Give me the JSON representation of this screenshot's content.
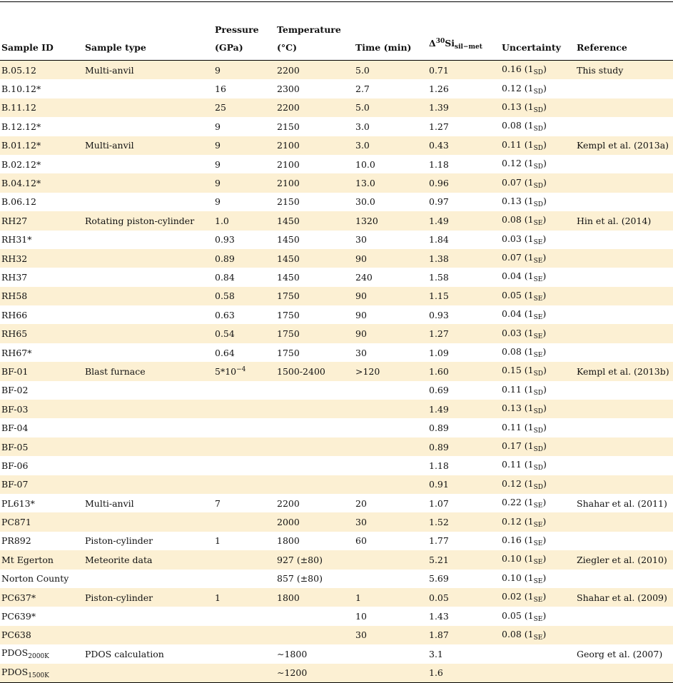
{
  "table": {
    "header": [
      [
        "Sample ID"
      ],
      [
        "Sample type"
      ],
      [
        "Pressure",
        "(GPa)"
      ],
      [
        "Temperature",
        "(°C)"
      ],
      [
        "Time (min)"
      ],
      [
        [
          "Δ",
          {
            "sup": "30"
          },
          "Si",
          {
            "sub": "sil−met"
          }
        ]
      ],
      [
        "Uncertainty"
      ],
      [
        "Reference"
      ]
    ],
    "rows": [
      [
        "B.05.12",
        "Multi-anvil",
        "9",
        "2200",
        "5.0",
        "0.71",
        [
          "0.16 (1",
          {
            "sub": "SD"
          },
          ")"
        ],
        "This study"
      ],
      [
        "B.10.12*",
        null,
        "16",
        "2300",
        "2.7",
        "1.26",
        [
          "0.12 (1",
          {
            "sub": "SD"
          },
          ")"
        ],
        null
      ],
      [
        "B.11.12",
        null,
        "25",
        "2200",
        "5.0",
        "1.39",
        [
          "0.13 (1",
          {
            "sub": "SD"
          },
          ")"
        ],
        null
      ],
      [
        "B.12.12*",
        null,
        "9",
        "2150",
        "3.0",
        "1.27",
        [
          "0.08 (1",
          {
            "sub": "SD"
          },
          ")"
        ],
        null
      ],
      [
        "B.01.12*",
        "Multi-anvil",
        "9",
        "2100",
        "3.0",
        "0.43",
        [
          "0.11 (1",
          {
            "sub": "SD"
          },
          ")"
        ],
        "Kempl et al. (2013a)"
      ],
      [
        "B.02.12*",
        null,
        "9",
        "2100",
        "10.0",
        "1.18",
        [
          "0.12 (1",
          {
            "sub": "SD"
          },
          ")"
        ],
        null
      ],
      [
        "B.04.12*",
        null,
        "9",
        "2100",
        "13.0",
        "0.96",
        [
          "0.07 (1",
          {
            "sub": "SD"
          },
          ")"
        ],
        null
      ],
      [
        "B.06.12",
        null,
        "9",
        "2150",
        "30.0",
        "0.97",
        [
          "0.13 (1",
          {
            "sub": "SD"
          },
          ")"
        ],
        null
      ],
      [
        "RH27",
        "Rotating piston-cylinder",
        "1.0",
        "1450",
        "1320",
        "1.49",
        [
          "0.08 (1",
          {
            "sub": "SE"
          },
          ")"
        ],
        "Hin et al. (2014)"
      ],
      [
        "RH31*",
        null,
        "0.93",
        "1450",
        "30",
        "1.84",
        [
          "0.03 (1",
          {
            "sub": "SE"
          },
          ")"
        ],
        null
      ],
      [
        "RH32",
        null,
        "0.89",
        "1450",
        "90",
        "1.38",
        [
          "0.07 (1",
          {
            "sub": "SE"
          },
          ")"
        ],
        null
      ],
      [
        "RH37",
        null,
        "0.84",
        "1450",
        "240",
        "1.58",
        [
          "0.04 (1",
          {
            "sub": "SE"
          },
          ")"
        ],
        null
      ],
      [
        "RH58",
        null,
        "0.58",
        "1750",
        "90",
        "1.15",
        [
          "0.05 (1",
          {
            "sub": "SE"
          },
          ")"
        ],
        null
      ],
      [
        "RH66",
        null,
        "0.63",
        "1750",
        "90",
        "0.93",
        [
          "0.04 (1",
          {
            "sub": "SE"
          },
          ")"
        ],
        null
      ],
      [
        "RH65",
        null,
        "0.54",
        "1750",
        "90",
        "1.27",
        [
          "0.03 (1",
          {
            "sub": "SE"
          },
          ")"
        ],
        null
      ],
      [
        "RH67*",
        null,
        "0.64",
        "1750",
        "30",
        "1.09",
        [
          "0.08 (1",
          {
            "sub": "SE"
          },
          ")"
        ],
        null
      ],
      [
        "BF-01",
        "Blast furnace",
        [
          "5*10",
          {
            "sup": "−4"
          }
        ],
        "1500-2400",
        ">120",
        "1.60",
        [
          "0.15 (1",
          {
            "sub": "SD"
          },
          ")"
        ],
        "Kempl et al. (2013b)"
      ],
      [
        "BF-02",
        null,
        null,
        null,
        null,
        "0.69",
        [
          "0.11 (1",
          {
            "sub": "SD"
          },
          ")"
        ],
        null
      ],
      [
        "BF-03",
        null,
        null,
        null,
        null,
        "1.49",
        [
          "0.13 (1",
          {
            "sub": "SD"
          },
          ")"
        ],
        null
      ],
      [
        "BF-04",
        null,
        null,
        null,
        null,
        "0.89",
        [
          "0.11 (1",
          {
            "sub": "SD"
          },
          ")"
        ],
        null
      ],
      [
        "BF-05",
        null,
        null,
        null,
        null,
        "0.89",
        [
          "0.17 (1",
          {
            "sub": "SD"
          },
          ")"
        ],
        null
      ],
      [
        "BF-06",
        null,
        null,
        null,
        null,
        "1.18",
        [
          "0.11 (1",
          {
            "sub": "SD"
          },
          ")"
        ],
        null
      ],
      [
        "BF-07",
        null,
        null,
        null,
        null,
        "0.91",
        [
          "0.12 (1",
          {
            "sub": "SD"
          },
          ")"
        ],
        null
      ],
      [
        "PL613*",
        "Multi-anvil",
        "7",
        "2200",
        "20",
        "1.07",
        [
          "0.22 (1",
          {
            "sub": "SE"
          },
          ")"
        ],
        "Shahar et al. (2011)"
      ],
      [
        "PC871",
        null,
        null,
        "2000",
        "30",
        "1.52",
        [
          "0.12 (1",
          {
            "sub": "SE"
          },
          ")"
        ],
        null
      ],
      [
        "PR892",
        "Piston-cylinder",
        "1",
        "1800",
        "60",
        "1.77",
        [
          "0.16 (1",
          {
            "sub": "SE"
          },
          ")"
        ],
        null
      ],
      [
        "Mt Egerton",
        "Meteorite data",
        null,
        "927 (±80)",
        null,
        "5.21",
        [
          "0.10 (1",
          {
            "sub": "SE"
          },
          ")"
        ],
        "Ziegler et al. (2010)"
      ],
      [
        "Norton County",
        null,
        null,
        "857 (±80)",
        null,
        "5.69",
        [
          "0.10 (1",
          {
            "sub": "SE"
          },
          ")"
        ],
        null
      ],
      [
        "PC637*",
        "Piston-cylinder",
        "1",
        "1800",
        "1",
        "0.05",
        [
          "0.02 (1",
          {
            "sub": "SE"
          },
          ")"
        ],
        "Shahar et al. (2009)"
      ],
      [
        "PC639*",
        null,
        null,
        null,
        "10",
        "1.43",
        [
          "0.05 (1",
          {
            "sub": "SE"
          },
          ")"
        ],
        null
      ],
      [
        "PC638",
        null,
        null,
        null,
        "30",
        "1.87",
        [
          "0.08 (1",
          {
            "sub": "SE"
          },
          ")"
        ],
        null
      ],
      [
        [
          "PDOS",
          {
            "sub": "2000K"
          }
        ],
        "PDOS calculation",
        null,
        "∼1800",
        null,
        "3.1",
        null,
        "Georg et al. (2007)"
      ],
      [
        [
          "PDOS",
          {
            "sub": "1500K"
          }
        ],
        null,
        null,
        "∼1200",
        null,
        "1.6",
        null,
        null
      ]
    ]
  }
}
